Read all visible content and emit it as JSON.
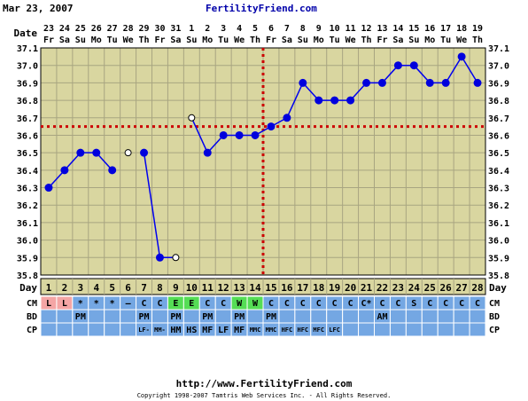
{
  "header": {
    "date": "Mar 23, 2007",
    "site": "FertilityFriend.com"
  },
  "footer": {
    "url": "http://www.FertilityFriend.com",
    "copyright": "Copyright 1998-2007 Tamtris Web Services Inc. - All Rights Reserved."
  },
  "colors": {
    "background": "#ffffff",
    "plot": "#d9d6a0",
    "grid": "#a8a581",
    "line": "#0000ee",
    "marker": "#0000dd",
    "coverline": "#cc0000",
    "strip": "#d9d6a0",
    "obs_row": "#74a7e3",
    "cm_light": "#f4a5a5",
    "cm_green": "#55dd55"
  },
  "chart_data": {
    "type": "line",
    "xlabel_top": "Date",
    "xlabel_bottom": "Day",
    "date_numbers": [
      "23",
      "24",
      "25",
      "26",
      "27",
      "28",
      "29",
      "30",
      "31",
      "1",
      "2",
      "3",
      "4",
      "5",
      "6",
      "7",
      "8",
      "9",
      "10",
      "11",
      "12",
      "13",
      "14",
      "15",
      "16",
      "17",
      "18",
      "19"
    ],
    "weekdays": [
      "Fr",
      "Sa",
      "Su",
      "Mo",
      "Tu",
      "We",
      "Th",
      "Fr",
      "Sa",
      "Su",
      "Mo",
      "Tu",
      "We",
      "Th",
      "Fr",
      "Sa",
      "Su",
      "Mo",
      "Tu",
      "We",
      "Th",
      "Fr",
      "Sa",
      "Su",
      "Mo",
      "Tu",
      "We",
      "Th"
    ],
    "cycle_days": [
      "1",
      "2",
      "3",
      "4",
      "5",
      "6",
      "7",
      "8",
      "9",
      "10",
      "11",
      "12",
      "13",
      "14",
      "15",
      "16",
      "17",
      "18",
      "19",
      "20",
      "21",
      "22",
      "23",
      "24",
      "25",
      "26",
      "27",
      "28"
    ],
    "y_ticks": [
      "35.8",
      "35.9",
      "36.0",
      "36.1",
      "36.2",
      "36.3",
      "36.4",
      "36.5",
      "36.6",
      "36.7",
      "36.8",
      "36.9",
      "37.0",
      "37.1"
    ],
    "ylim": [
      35.8,
      37.1
    ],
    "grid": true,
    "temperatures": [
      36.3,
      36.4,
      36.5,
      36.5,
      36.4,
      36.5,
      36.5,
      35.9,
      35.9,
      36.7,
      36.5,
      36.6,
      36.6,
      36.6,
      36.65,
      36.7,
      36.9,
      36.8,
      36.8,
      36.8,
      36.9,
      36.9,
      37.0,
      37.0,
      36.9,
      36.9,
      37.05,
      36.9
    ],
    "open_markers": [
      6,
      9,
      10
    ],
    "line_breaks_after": [
      5,
      6,
      9
    ],
    "coverline_temp": 36.65,
    "ovulation_day": 14,
    "rows": [
      {
        "label": "CM",
        "values": [
          "L",
          "L",
          "*",
          "*",
          "*",
          "–",
          "C",
          "C",
          "E",
          "E",
          "C",
          "C",
          "W",
          "W",
          "C",
          "C",
          "C",
          "C",
          "C",
          "C",
          "C*",
          "C",
          "C",
          "S",
          "C",
          "C",
          "C",
          "C"
        ],
        "highlight": {
          "1": "cm_light",
          "2": "cm_light",
          "9": "cm_green",
          "10": "cm_green",
          "13": "cm_green",
          "14": "cm_green"
        }
      },
      {
        "label": "BD",
        "values": [
          "",
          "",
          "PM",
          "",
          "",
          "",
          "PM",
          "",
          "PM",
          "",
          "PM",
          "",
          "PM",
          "",
          "PM",
          "",
          "",
          "",
          "",
          "",
          "",
          "AM",
          "",
          "",
          "",
          "",
          "",
          ""
        ]
      },
      {
        "label": "CP",
        "values": [
          "",
          "",
          "",
          "",
          "",
          "",
          "LF-",
          "MM-",
          "HM",
          "HS",
          "MF",
          "LF",
          "MF",
          "MMC",
          "MMC",
          "HFC",
          "HFC",
          "MFC",
          "LFC",
          "",
          "",
          "",
          "",
          "",
          "",
          "",
          "",
          ""
        ]
      }
    ]
  }
}
